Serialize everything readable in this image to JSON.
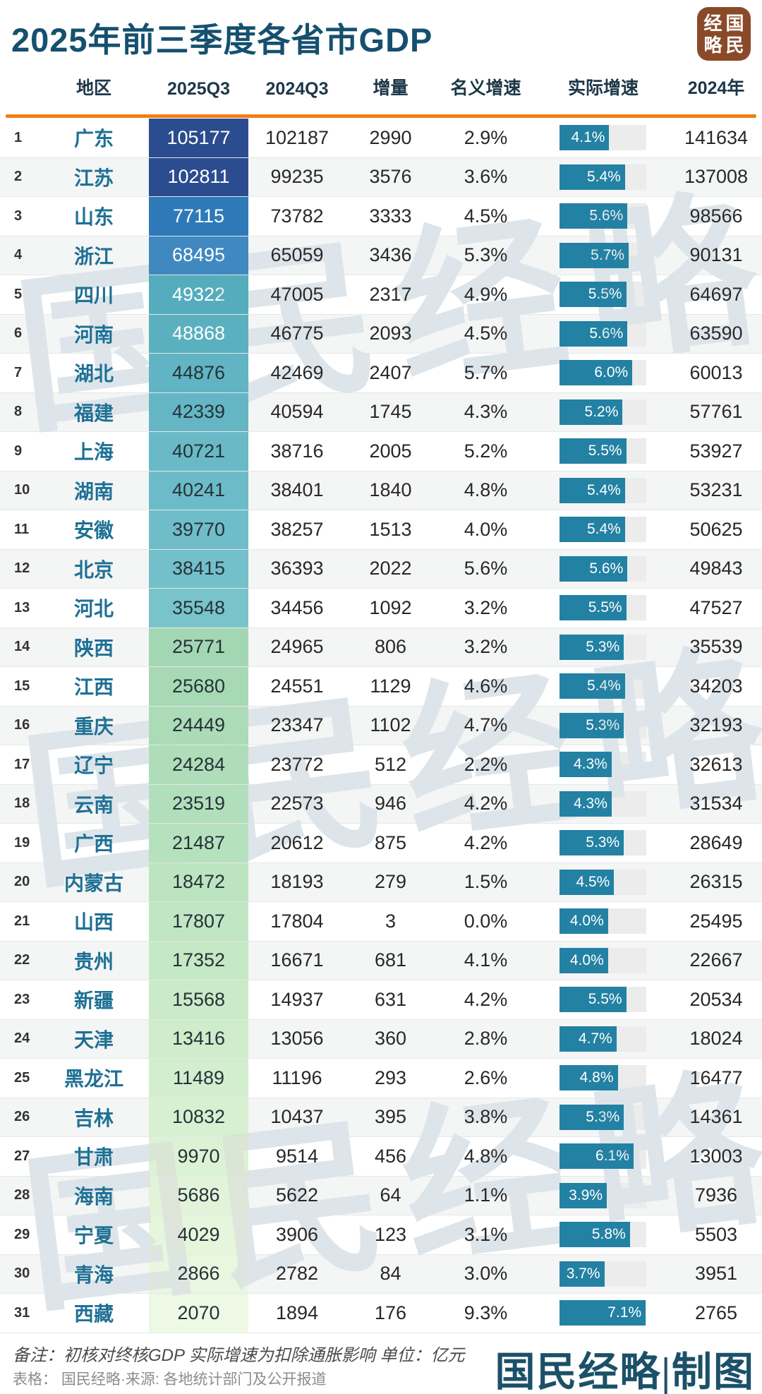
{
  "title": "2025年前三季度各省市GDP",
  "logo": {
    "chars": [
      "经",
      "国",
      "略",
      "民"
    ]
  },
  "watermark": {
    "text": "国民经略"
  },
  "colors": {
    "accent_line": "#f07f17",
    "bar_fill": "#2381a3",
    "bar_track": "#ececec",
    "title_text": "#15506f",
    "region_text": "#1e7094",
    "header_text": "#1d3748",
    "logo_bg": "#8a4a28",
    "credit_text": "#1b5168"
  },
  "chart_data": {
    "type": "table",
    "title": "2025年前三季度各省市GDP",
    "unit": "亿元",
    "columns": [
      "地区",
      "2025Q3",
      "2024Q3",
      "增量",
      "名义增速",
      "实际增速",
      "2024年"
    ],
    "bar_column": "实际增速",
    "bar_scale_max": 7.15,
    "rows": [
      {
        "rank": 1,
        "region": "广东",
        "q3_2025": 105177,
        "q3_2024": 102187,
        "delta": 2990,
        "nominal": "2.9%",
        "real": "4.1%",
        "real_value": 4.1,
        "y2024": 141634,
        "cell_bg": "#2b4c8e",
        "cell_fg": "#ffffff"
      },
      {
        "rank": 2,
        "region": "江苏",
        "q3_2025": 102811,
        "q3_2024": 99235,
        "delta": 3576,
        "nominal": "3.6%",
        "real": "5.4%",
        "real_value": 5.4,
        "y2024": 137008,
        "cell_bg": "#2b4c8e",
        "cell_fg": "#ffffff"
      },
      {
        "rank": 3,
        "region": "山东",
        "q3_2025": 77115,
        "q3_2024": 73782,
        "delta": 3333,
        "nominal": "4.5%",
        "real": "5.6%",
        "real_value": 5.6,
        "y2024": 98566,
        "cell_bg": "#2e7ab8",
        "cell_fg": "#ffffff"
      },
      {
        "rank": 4,
        "region": "浙江",
        "q3_2025": 68495,
        "q3_2024": 65059,
        "delta": 3436,
        "nominal": "5.3%",
        "real": "5.7%",
        "real_value": 5.7,
        "y2024": 90131,
        "cell_bg": "#4089c0",
        "cell_fg": "#ffffff"
      },
      {
        "rank": 5,
        "region": "四川",
        "q3_2025": 49322,
        "q3_2024": 47005,
        "delta": 2317,
        "nominal": "4.9%",
        "real": "5.5%",
        "real_value": 5.5,
        "y2024": 64697,
        "cell_bg": "#55acbc",
        "cell_fg": "#ffffff"
      },
      {
        "rank": 6,
        "region": "河南",
        "q3_2025": 48868,
        "q3_2024": 46775,
        "delta": 2093,
        "nominal": "4.5%",
        "real": "5.6%",
        "real_value": 5.6,
        "y2024": 63590,
        "cell_bg": "#5bb0c0",
        "cell_fg": "#ffffff"
      },
      {
        "rank": 7,
        "region": "湖北",
        "q3_2025": 44876,
        "q3_2024": 42469,
        "delta": 2407,
        "nominal": "5.7%",
        "real": "6.0%",
        "real_value": 6.0,
        "y2024": 60013,
        "cell_bg": "#61b4c3",
        "cell_fg": "#263238"
      },
      {
        "rank": 8,
        "region": "福建",
        "q3_2025": 42339,
        "q3_2024": 40594,
        "delta": 1745,
        "nominal": "4.3%",
        "real": "5.2%",
        "real_value": 5.2,
        "y2024": 57761,
        "cell_bg": "#65b6c5",
        "cell_fg": "#263238"
      },
      {
        "rank": 9,
        "region": "上海",
        "q3_2025": 40721,
        "q3_2024": 38716,
        "delta": 2005,
        "nominal": "5.2%",
        "real": "5.5%",
        "real_value": 5.5,
        "y2024": 53927,
        "cell_bg": "#69b9c6",
        "cell_fg": "#263238"
      },
      {
        "rank": 10,
        "region": "湖南",
        "q3_2025": 40241,
        "q3_2024": 38401,
        "delta": 1840,
        "nominal": "4.8%",
        "real": "5.4%",
        "real_value": 5.4,
        "y2024": 53231,
        "cell_bg": "#6cbbc8",
        "cell_fg": "#263238"
      },
      {
        "rank": 11,
        "region": "安徽",
        "q3_2025": 39770,
        "q3_2024": 38257,
        "delta": 1513,
        "nominal": "4.0%",
        "real": "5.4%",
        "real_value": 5.4,
        "y2024": 50625,
        "cell_bg": "#6fbdc9",
        "cell_fg": "#263238"
      },
      {
        "rank": 12,
        "region": "北京",
        "q3_2025": 38415,
        "q3_2024": 36393,
        "delta": 2022,
        "nominal": "5.6%",
        "real": "5.6%",
        "real_value": 5.6,
        "y2024": 49843,
        "cell_bg": "#73bfca",
        "cell_fg": "#263238"
      },
      {
        "rank": 13,
        "region": "河北",
        "q3_2025": 35548,
        "q3_2024": 34456,
        "delta": 1092,
        "nominal": "3.2%",
        "real": "5.5%",
        "real_value": 5.5,
        "y2024": 47527,
        "cell_bg": "#79c3cb",
        "cell_fg": "#263238"
      },
      {
        "rank": 14,
        "region": "陕西",
        "q3_2025": 25771,
        "q3_2024": 24965,
        "delta": 806,
        "nominal": "3.2%",
        "real": "5.3%",
        "real_value": 5.3,
        "y2024": 35539,
        "cell_bg": "#a3d7b3",
        "cell_fg": "#263238"
      },
      {
        "rank": 15,
        "region": "江西",
        "q3_2025": 25680,
        "q3_2024": 24551,
        "delta": 1129,
        "nominal": "4.6%",
        "real": "5.4%",
        "real_value": 5.4,
        "y2024": 34203,
        "cell_bg": "#a7d9b5",
        "cell_fg": "#263238"
      },
      {
        "rank": 16,
        "region": "重庆",
        "q3_2025": 24449,
        "q3_2024": 23347,
        "delta": 1102,
        "nominal": "4.7%",
        "real": "5.3%",
        "real_value": 5.3,
        "y2024": 32193,
        "cell_bg": "#abdbb7",
        "cell_fg": "#263238"
      },
      {
        "rank": 17,
        "region": "辽宁",
        "q3_2025": 24284,
        "q3_2024": 23772,
        "delta": 512,
        "nominal": "2.2%",
        "real": "4.3%",
        "real_value": 4.3,
        "y2024": 32613,
        "cell_bg": "#afddb9",
        "cell_fg": "#263238"
      },
      {
        "rank": 18,
        "region": "云南",
        "q3_2025": 23519,
        "q3_2024": 22573,
        "delta": 946,
        "nominal": "4.2%",
        "real": "4.3%",
        "real_value": 4.3,
        "y2024": 31534,
        "cell_bg": "#b2dfbb",
        "cell_fg": "#263238"
      },
      {
        "rank": 19,
        "region": "广西",
        "q3_2025": 21487,
        "q3_2024": 20612,
        "delta": 875,
        "nominal": "4.2%",
        "real": "5.3%",
        "real_value": 5.3,
        "y2024": 28649,
        "cell_bg": "#b6e1bd",
        "cell_fg": "#263238"
      },
      {
        "rank": 20,
        "region": "内蒙古",
        "q3_2025": 18472,
        "q3_2024": 18193,
        "delta": 279,
        "nominal": "1.5%",
        "real": "4.5%",
        "real_value": 4.5,
        "y2024": 26315,
        "cell_bg": "#bce4c0",
        "cell_fg": "#263238"
      },
      {
        "rank": 21,
        "region": "山西",
        "q3_2025": 17807,
        "q3_2024": 17804,
        "delta": 3,
        "nominal": "0.0%",
        "real": "4.0%",
        "real_value": 4.0,
        "y2024": 25495,
        "cell_bg": "#c0e6c3",
        "cell_fg": "#263238"
      },
      {
        "rank": 22,
        "region": "贵州",
        "q3_2025": 17352,
        "q3_2024": 16671,
        "delta": 681,
        "nominal": "4.1%",
        "real": "4.0%",
        "real_value": 4.0,
        "y2024": 22667,
        "cell_bg": "#c5e8c5",
        "cell_fg": "#263238"
      },
      {
        "rank": 23,
        "region": "新疆",
        "q3_2025": 15568,
        "q3_2024": 14937,
        "delta": 631,
        "nominal": "4.2%",
        "real": "5.5%",
        "real_value": 5.5,
        "y2024": 20534,
        "cell_bg": "#caeac8",
        "cell_fg": "#263238"
      },
      {
        "rank": 24,
        "region": "天津",
        "q3_2025": 13416,
        "q3_2024": 13056,
        "delta": 360,
        "nominal": "2.8%",
        "real": "4.7%",
        "real_value": 4.7,
        "y2024": 18024,
        "cell_bg": "#cfeccb",
        "cell_fg": "#263238"
      },
      {
        "rank": 25,
        "region": "黑龙江",
        "q3_2025": 11489,
        "q3_2024": 11196,
        "delta": 293,
        "nominal": "2.6%",
        "real": "4.8%",
        "real_value": 4.8,
        "y2024": 16477,
        "cell_bg": "#d3eece",
        "cell_fg": "#263238"
      },
      {
        "rank": 26,
        "region": "吉林",
        "q3_2025": 10832,
        "q3_2024": 10437,
        "delta": 395,
        "nominal": "3.8%",
        "real": "5.3%",
        "real_value": 5.3,
        "y2024": 14361,
        "cell_bg": "#d7f0d1",
        "cell_fg": "#263238"
      },
      {
        "rank": 27,
        "region": "甘肃",
        "q3_2025": 9970,
        "q3_2024": 9514,
        "delta": 456,
        "nominal": "4.8%",
        "real": "6.1%",
        "real_value": 6.1,
        "y2024": 13003,
        "cell_bg": "#dbf2d4",
        "cell_fg": "#263238"
      },
      {
        "rank": 28,
        "region": "海南",
        "q3_2025": 5686,
        "q3_2024": 5622,
        "delta": 64,
        "nominal": "1.1%",
        "real": "3.9%",
        "real_value": 3.9,
        "y2024": 7936,
        "cell_bg": "#e1f4d9",
        "cell_fg": "#263238"
      },
      {
        "rank": 29,
        "region": "宁夏",
        "q3_2025": 4029,
        "q3_2024": 3906,
        "delta": 123,
        "nominal": "3.1%",
        "real": "5.8%",
        "real_value": 5.8,
        "y2024": 5503,
        "cell_bg": "#e5f6dc",
        "cell_fg": "#263238"
      },
      {
        "rank": 30,
        "region": "青海",
        "q3_2025": 2866,
        "q3_2024": 2782,
        "delta": 84,
        "nominal": "3.0%",
        "real": "3.7%",
        "real_value": 3.7,
        "y2024": 3951,
        "cell_bg": "#e9f7e0",
        "cell_fg": "#263238"
      },
      {
        "rank": 31,
        "region": "西藏",
        "q3_2025": 2070,
        "q3_2024": 1894,
        "delta": 176,
        "nominal": "9.3%",
        "real": "7.1%",
        "real_value": 7.1,
        "y2024": 2765,
        "cell_bg": "#edf9e4",
        "cell_fg": "#263238"
      }
    ]
  },
  "footer": {
    "note": "备注：初核对终核GDP 实际增速为扣除通胀影响 单位：亿元",
    "source": "表格： 国民经略·来源: 各地统计部门及公开报道",
    "credit": "国民经略|制图"
  }
}
